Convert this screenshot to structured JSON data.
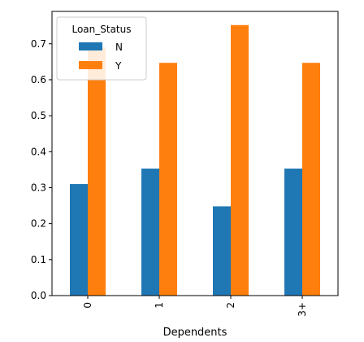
{
  "chart_data": {
    "type": "bar",
    "title": "",
    "xlabel": "Dependents",
    "ylabel": "",
    "categories": [
      "0",
      "1",
      "2",
      "3+"
    ],
    "series": [
      {
        "name": "N",
        "color": "#1f77b4",
        "values": [
          0.31,
          0.353,
          0.248,
          0.353
        ]
      },
      {
        "name": "Y",
        "color": "#ff7f0e",
        "values": [
          0.69,
          0.647,
          0.752,
          0.647
        ]
      }
    ],
    "ylim": [
      0,
      0.79
    ],
    "yticks": [
      0.0,
      0.1,
      0.2,
      0.3,
      0.4,
      0.5,
      0.6,
      0.7
    ],
    "ytick_labels": [
      "0.0",
      "0.1",
      "0.2",
      "0.3",
      "0.4",
      "0.5",
      "0.6",
      "0.7"
    ],
    "legend": {
      "title": "Loan_Status",
      "placement": "upper-left"
    },
    "grid": false
  }
}
